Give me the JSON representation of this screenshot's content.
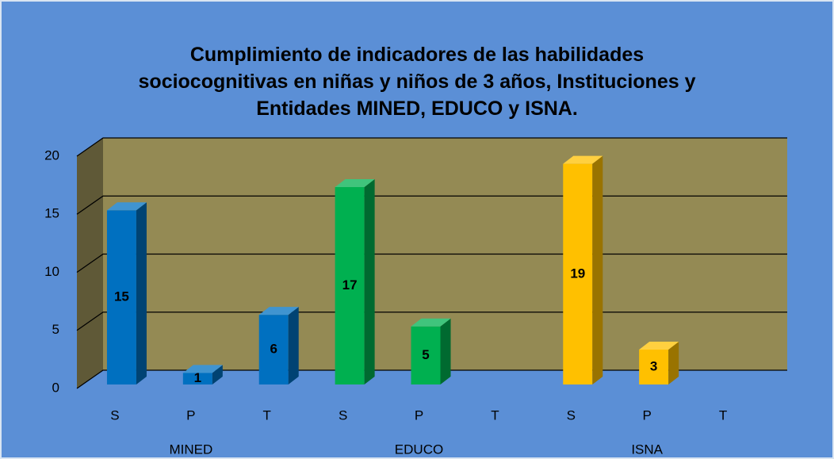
{
  "chart_data": {
    "type": "bar3d",
    "title": "Cumplimiento de indicadores de las habilidades sociocognitivas en niñas y niños de 3 años, Instituciones y Entidades MINED, EDUCO y ISNA.",
    "categories": [
      "S",
      "P",
      "T"
    ],
    "series": [
      {
        "name": "MINED",
        "color": "#0070c0",
        "values": [
          15,
          1,
          6
        ]
      },
      {
        "name": "EDUCO",
        "color": "#00b050",
        "values": [
          17,
          5,
          null
        ]
      },
      {
        "name": "ISNA",
        "color": "#ffc000",
        "values": [
          19,
          3,
          null
        ]
      }
    ],
    "ylim": [
      0,
      20
    ],
    "yticks": [
      0,
      5,
      10,
      15,
      20
    ],
    "grid": true
  }
}
